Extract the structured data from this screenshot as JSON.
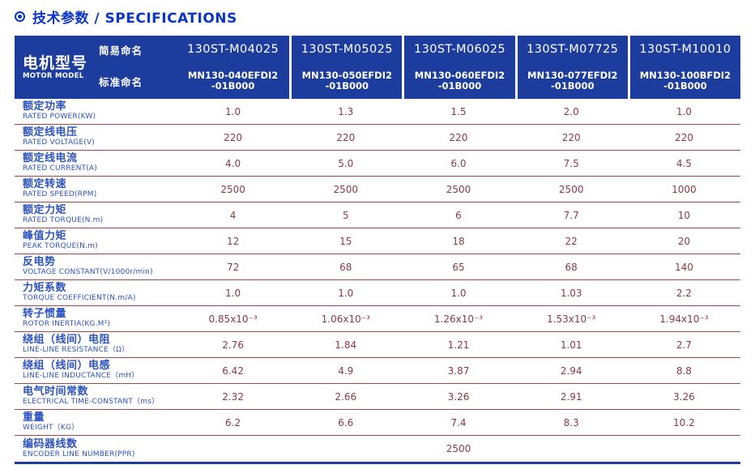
{
  "title": {
    "icon": "circled-dot",
    "text": "技术参数 / SPECIFICATIONS"
  },
  "colors": {
    "header_bg": "#1d3d9e",
    "title": "#0b35c5",
    "label": "#2d53c0",
    "value": "#8d3a40",
    "divider": "#9c4a50",
    "header_text": "#ffffff"
  },
  "table": {
    "model_header": {
      "cn": "电机型号",
      "en": "MOTOR MODEL",
      "simple_label": "简易命名",
      "standard_label": "标准命名"
    },
    "columns": [
      {
        "simple": "130ST-M04025",
        "standard_line1": "MN130-040EFDI2",
        "standard_line2": "-01B000"
      },
      {
        "simple": "130ST-M05025",
        "standard_line1": "MN130-050EFDI2",
        "standard_line2": "-01B000"
      },
      {
        "simple": "130ST-M06025",
        "standard_line1": "MN130-060EFDI2",
        "standard_line2": "-01B000"
      },
      {
        "simple": "130ST-M07725",
        "standard_line1": "MN130-077EFDI2",
        "standard_line2": "-01B000"
      },
      {
        "simple": "130ST-M10010",
        "standard_line1": "MN130-100BFDI2",
        "standard_line2": "-01B000"
      }
    ],
    "rows": [
      {
        "cn": "额定功率",
        "en": "RATED POWER(KW)",
        "values": [
          "1.0",
          "1.3",
          "1.5",
          "2.0",
          "1.0"
        ]
      },
      {
        "cn": "额定线电压",
        "en": "RATED VOLTAGE(V)",
        "values": [
          "220",
          "220",
          "220",
          "220",
          "220"
        ]
      },
      {
        "cn": "额定线电流",
        "en": "RATED CURRENT(A)",
        "values": [
          "4.0",
          "5.0",
          "6.0",
          "7.5",
          "4.5"
        ]
      },
      {
        "cn": "额定转速",
        "en": "RATED SPEED(RPM)",
        "values": [
          "2500",
          "2500",
          "2500",
          "2500",
          "1000"
        ]
      },
      {
        "cn": "额定力矩",
        "en": "RATED TORQUE(N.m)",
        "values": [
          "4",
          "5",
          "6",
          "7.7",
          "10"
        ]
      },
      {
        "cn": "峰值力矩",
        "en": "PEAK TORQUE(N.m)",
        "values": [
          "12",
          "15",
          "18",
          "22",
          "20"
        ]
      },
      {
        "cn": "反电势",
        "en": "VOLTAGE CONSTANT(V/1000r/min)",
        "values": [
          "72",
          "68",
          "65",
          "68",
          "140"
        ]
      },
      {
        "cn": "力矩系数",
        "en": "TORQUE COEFFICIENT(N.m/A)",
        "values": [
          "1.0",
          "1.0",
          "1.0",
          "1.03",
          "2.2"
        ]
      },
      {
        "cn": "转子惯量",
        "en": "ROTOR INERTIA(KG.M²)",
        "values": [
          "0.85x10⁻³",
          "1.06x10⁻³",
          "1.26x10⁻³",
          "1.53x10⁻³",
          "1.94x10⁻³"
        ]
      },
      {
        "cn": "绕组（线间）电阻",
        "en": "LINE-LINE RESISTANCE（Ω）",
        "values": [
          "2.76",
          "1.84",
          "1.21",
          "1.01",
          "2.7"
        ]
      },
      {
        "cn": "绕组（线间）电感",
        "en": "LINE-LINE INDUCTANCE（mH）",
        "values": [
          "6.42",
          "4.9",
          "3.87",
          "2.94",
          "8.8"
        ]
      },
      {
        "cn": "电气时间常数",
        "en": "ELECTRICAL TIME-CONSTANT（ms）",
        "values": [
          "2.32",
          "2.66",
          "3.26",
          "2.91",
          "3.26"
        ]
      },
      {
        "cn": "重量",
        "en": "WEIGHT（KG）",
        "values": [
          "6.2",
          "6.6",
          "7.4",
          "8.3",
          "10.2"
        ]
      },
      {
        "cn": "编码器线数",
        "en": "ENCODER LINE NUMBER(PPR)",
        "span_value": "2500"
      }
    ]
  }
}
